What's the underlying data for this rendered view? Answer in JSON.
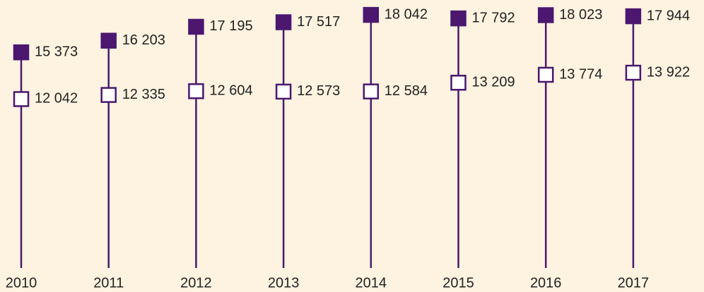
{
  "chart_data": {
    "type": "dot",
    "categories": [
      "2010",
      "2011",
      "2012",
      "2013",
      "2014",
      "2015",
      "2016",
      "2017"
    ],
    "series": [
      {
        "color": "#4b176f",
        "fill": "#4b176f",
        "values": [
          15373,
          16203,
          17195,
          17517,
          18042,
          17792,
          18023,
          17944
        ],
        "value_labels": [
          "15 373",
          "16 203",
          "17 195",
          "17 517",
          "18 042",
          "17 792",
          "18 023",
          "17 944"
        ]
      },
      {
        "color": "#4b176f",
        "fill": "#ffffff",
        "values": [
          12042,
          12335,
          12604,
          12573,
          12584,
          13209,
          13774,
          13922
        ],
        "value_labels": [
          "12 042",
          "12 335",
          "12 604",
          "12 573",
          "12 584",
          "13 209",
          "13 774",
          "13 922"
        ]
      }
    ],
    "ylim": [
      0,
      18500
    ],
    "background": "#fdf3e0"
  }
}
